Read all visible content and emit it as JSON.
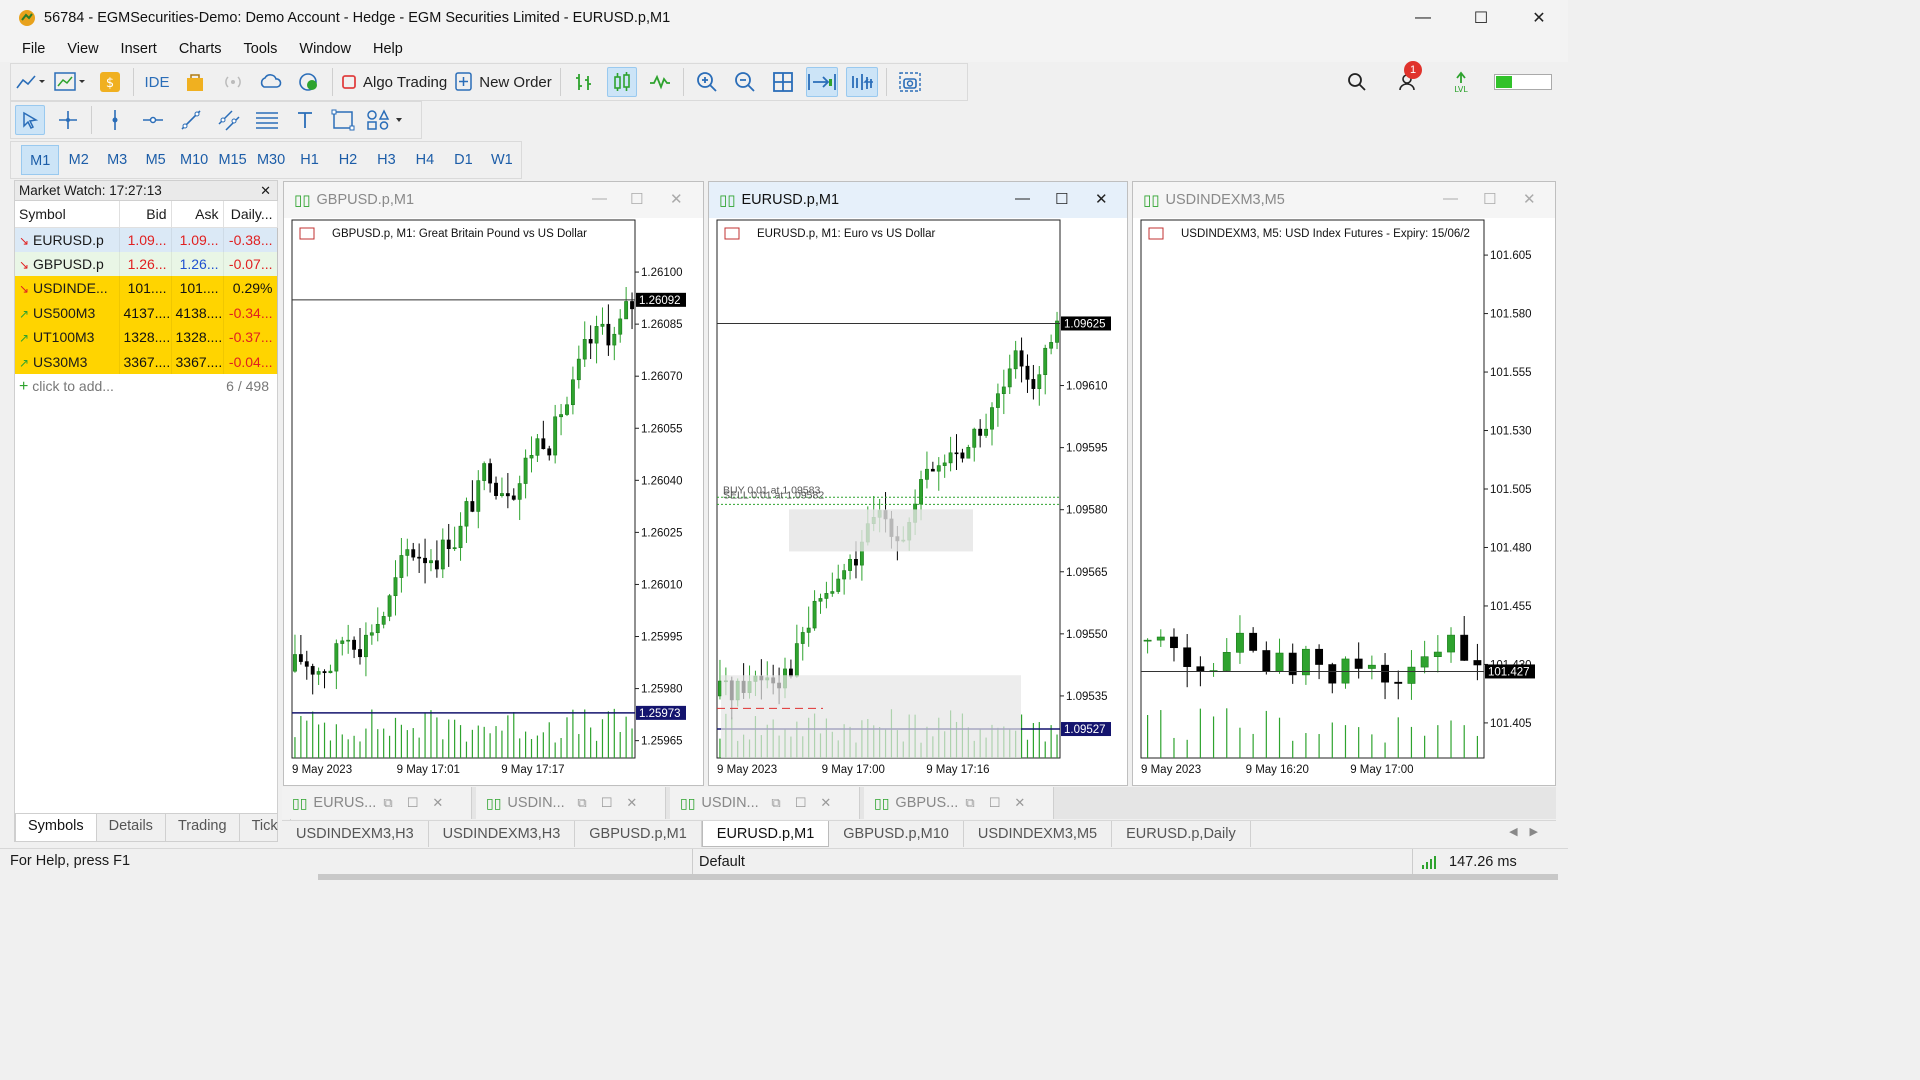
{
  "window": {
    "title": "56784 - EGMSecurities-Demo: Demo Account - Hedge - EGM Securities Limited - EURUSD.p,M1"
  },
  "menu": [
    "File",
    "View",
    "Insert",
    "Charts",
    "Tools",
    "Window",
    "Help"
  ],
  "toolbar": {
    "ide": "IDE",
    "algo_trading": "Algo Trading",
    "new_order": "New Order",
    "notif_count": "1",
    "level_percent": 28
  },
  "timeframes": [
    "M1",
    "M2",
    "M3",
    "M5",
    "M10",
    "M15",
    "M30",
    "H1",
    "H2",
    "H3",
    "H4",
    "D1",
    "W1"
  ],
  "market_watch": {
    "title": "Market Watch: 17:27:13",
    "columns": [
      "Symbol",
      "Bid",
      "Ask",
      "Daily..."
    ],
    "rows": [
      {
        "symbol": "EURUSD.p",
        "bid": "1.09...",
        "ask": "1.09...",
        "daily": "-0.38...",
        "dir": "down"
      },
      {
        "symbol": "GBPUSD.p",
        "bid": "1.26...",
        "ask": "1.26...",
        "daily": "-0.07...",
        "dir": "down"
      },
      {
        "symbol": "USDINDE...",
        "bid": "101....",
        "ask": "101....",
        "daily": "0.29%",
        "dir": "down"
      },
      {
        "symbol": "US500M3",
        "bid": "4137....",
        "ask": "4138....",
        "daily": "-0.34...",
        "dir": "up"
      },
      {
        "symbol": "UT100M3",
        "bid": "1328....",
        "ask": "1328....",
        "daily": "-0.37...",
        "dir": "up"
      },
      {
        "symbol": "US30M3",
        "bid": "3367....",
        "ask": "3367....",
        "daily": "-0.04...",
        "dir": "up"
      }
    ],
    "add_label": "click to add...",
    "count": "6 / 498",
    "tabs": [
      "Symbols",
      "Details",
      "Trading",
      "Tick"
    ]
  },
  "charts": [
    {
      "title": "GBPUSD.p,M1",
      "caption": "GBPUSD.p, M1:  Great Britain Pound vs US Dollar",
      "price_labels": [
        "1.26100",
        "1.26085",
        "1.26070",
        "1.26055",
        "1.26040",
        "1.26025",
        "1.26010",
        "1.25995",
        "1.25980",
        "1.25965"
      ],
      "ymin": 1.2596,
      "ymax": 1.26115,
      "current_price": "1.26092",
      "current_value": 1.26092,
      "line2_price": "1.25973",
      "line2_value": 1.25973,
      "time_labels": [
        "9 May 2023",
        "9 May 17:01",
        "9 May 17:17"
      ]
    },
    {
      "title": "EURUSD.p,M1",
      "caption": "EURUSD.p, M1:  Euro vs US Dollar",
      "price_labels": [
        "1.09610",
        "1.09595",
        "1.09580",
        "1.09565",
        "1.09550",
        "1.09535"
      ],
      "ymin": 1.0952,
      "ymax": 1.0965,
      "current_price": "1.09625",
      "current_value": 1.09625,
      "line2_price": "1.09527",
      "line2_value": 1.09527,
      "order_labels": [
        "BUY 0.01 at 1.09583",
        "SELL 0.01 at 1.09582"
      ],
      "time_labels": [
        "9 May 2023",
        "9 May 17:00",
        "9 May 17:16"
      ]
    },
    {
      "title": "USDINDEXM3,M5",
      "caption": "USDINDEXM3, M5:  USD Index Futures - Expiry: 15/06/2",
      "price_labels": [
        "101.605",
        "101.580",
        "101.555",
        "101.530",
        "101.505",
        "101.480",
        "101.455",
        "101.430",
        "101.405"
      ],
      "ymin": 101.39,
      "ymax": 101.62,
      "current_price": "101.427",
      "current_value": 101.427,
      "time_labels": [
        "9 May 2023",
        "9 May 16:20",
        "9 May 17:00"
      ]
    }
  ],
  "chart_tabs": [
    "EURUS...",
    "USDIN...",
    "USDIN...",
    "GBPUS..."
  ],
  "sheet_tabs": [
    "USDINDEXM3,H3",
    "USDINDEXM3,H3",
    "GBPUSD.p,M1",
    "EURUSD.p,M1",
    "GBPUSD.p,M10",
    "USDINDEXM3,M5",
    "EURUSD.p,Daily"
  ],
  "status": {
    "help": "For Help, press F1",
    "profile": "Default",
    "ping": "147.26 ms"
  },
  "colors": {
    "bull": "#2ea32e",
    "bear": "#000000",
    "down_red": "#e02020",
    "highlight_row": "#ffd400",
    "accent": "#2a6db8"
  }
}
